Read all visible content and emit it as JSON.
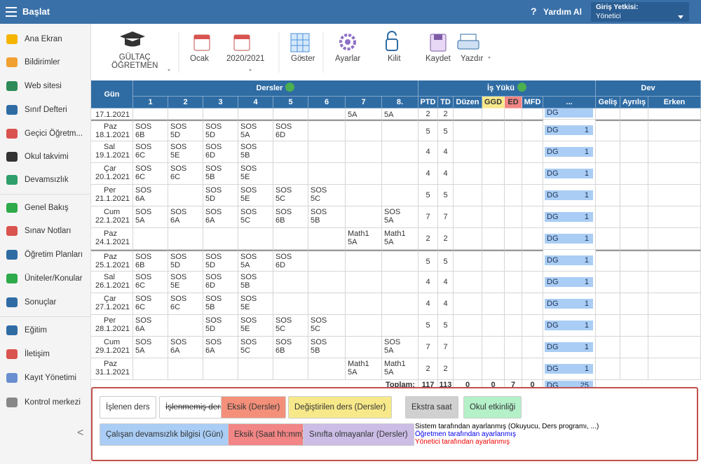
{
  "header": {
    "title": "Başlat",
    "help": "Yardım Al",
    "role_label": "Giriş Yetkisi:",
    "role": "Yönetici"
  },
  "sidebar": {
    "items": [
      "Ana Ekran",
      "Bildirimler",
      "Web sitesi",
      "Sınıf Defteri",
      "Geçici Öğretm...",
      "Okul takvimi",
      "Devamsızlık",
      "Genel Bakış",
      "Sınav Notları",
      "Öğretim Planları",
      "Üniteler/Konular",
      "Sonuçlar",
      "Eğitim",
      "İletişim",
      "Kayıt Yönetimi",
      "Kontrol merkezi"
    ]
  },
  "toolbar": {
    "teacher": [
      "GÜLTAÇ",
      "ÖĞRETMEN"
    ],
    "month": "Ocak",
    "year": "2020/2021",
    "show": "Göster",
    "settings": "Ayarlar",
    "lock": "Kilit",
    "save": "Kaydet",
    "print": "Yazdır"
  },
  "table": {
    "headers": {
      "day": "Gün",
      "lessons": "Dersler",
      "workload": "İş Yükü",
      "attendance": "Dev",
      "lesson_cols": [
        "1",
        "2",
        "3",
        "4",
        "5",
        "6",
        "7",
        "8."
      ],
      "workload_cols": [
        "PTD",
        "TD",
        "Düzen",
        "GGD",
        "ED",
        "MFD",
        "..."
      ],
      "attendance_cols": [
        "Geliş",
        "Ayrılış",
        "Erken"
      ]
    },
    "rows": [
      {
        "day": null,
        "date": "17.1.2021",
        "lessons": [
          null,
          null,
          null,
          null,
          null,
          null,
          {
            "c": "5A"
          },
          {
            "c": "5A"
          }
        ],
        "ptd": 2,
        "td": 2,
        "dg": "DG",
        "dg_value": null
      },
      {
        "day": "Paz",
        "date": "18.1.2021",
        "lessons": [
          {
            "s": "SOS",
            "c": "6B"
          },
          {
            "s": "SOS",
            "c": "5D"
          },
          {
            "s": "SOS",
            "c": "5D"
          },
          {
            "s": "SOS",
            "c": "5A"
          },
          {
            "s": "SOS",
            "c": "6D"
          },
          null,
          null,
          null
        ],
        "ptd": 5,
        "td": 5,
        "dg": "DG",
        "dg_value": 1
      },
      {
        "day": "Sal",
        "date": "19.1.2021",
        "lessons": [
          {
            "s": "SOS",
            "c": "6C"
          },
          {
            "s": "SOS",
            "c": "5E"
          },
          {
            "s": "SOS",
            "c": "6D"
          },
          {
            "s": "SOS",
            "c": "5B"
          },
          null,
          null,
          null,
          null
        ],
        "ptd": 4,
        "td": 4,
        "dg": "DG",
        "dg_value": 1
      },
      {
        "day": "Çar",
        "date": "20.1.2021",
        "lessons": [
          {
            "s": "SOS",
            "c": "6C"
          },
          {
            "s": "SOS",
            "c": "6C"
          },
          {
            "s": "SOS",
            "c": "5B"
          },
          {
            "s": "SOS",
            "c": "5E"
          },
          null,
          null,
          null,
          null
        ],
        "ptd": 4,
        "td": 4,
        "dg": "DG",
        "dg_value": 1
      },
      {
        "day": "Per",
        "date": "21.1.2021",
        "lessons": [
          {
            "s": "SOS",
            "c": "6A"
          },
          null,
          {
            "s": "SOS",
            "c": "5D"
          },
          {
            "s": "SOS",
            "c": "5E"
          },
          {
            "s": "SOS",
            "c": "5C"
          },
          {
            "s": "SOS",
            "c": "5C"
          },
          null,
          null
        ],
        "ptd": 5,
        "td": 5,
        "dg": "DG",
        "dg_value": 1
      },
      {
        "day": "Cum",
        "date": "22.1.2021",
        "lessons": [
          {
            "s": "SOS",
            "c": "5A"
          },
          {
            "s": "SOS",
            "c": "6A"
          },
          {
            "s": "SOS",
            "c": "6A"
          },
          {
            "s": "SOS",
            "c": "5C"
          },
          {
            "s": "SOS",
            "c": "6B"
          },
          {
            "s": "SOS",
            "c": "5B"
          },
          null,
          {
            "s": "SOS",
            "c": "5A"
          }
        ],
        "ptd": 7,
        "td": 7,
        "dg": "DG",
        "dg_value": 1
      },
      {
        "day": "Paz",
        "date": "24.1.2021",
        "lessons": [
          null,
          null,
          null,
          null,
          null,
          null,
          {
            "s": "Math1",
            "c": "5A"
          },
          {
            "s": "Math1",
            "c": "5A"
          }
        ],
        "ptd": 2,
        "td": 2,
        "dg": "DG",
        "dg_value": 1
      },
      {
        "day": "Paz",
        "date": "25.1.2021",
        "lessons": [
          {
            "s": "SOS",
            "c": "6B"
          },
          {
            "s": "SOS",
            "c": "5D"
          },
          {
            "s": "SOS",
            "c": "5D"
          },
          {
            "s": "SOS",
            "c": "5A"
          },
          {
            "s": "SOS",
            "c": "6D"
          },
          null,
          null,
          null
        ],
        "ptd": 5,
        "td": 5,
        "dg": "DG",
        "dg_value": 1
      },
      {
        "day": "Sal",
        "date": "26.1.2021",
        "lessons": [
          {
            "s": "SOS",
            "c": "6C"
          },
          {
            "s": "SOS",
            "c": "5E"
          },
          {
            "s": "SOS",
            "c": "6D"
          },
          {
            "s": "SOS",
            "c": "5B"
          },
          null,
          null,
          null,
          null
        ],
        "ptd": 4,
        "td": 4,
        "dg": "DG",
        "dg_value": 1
      },
      {
        "day": "Çar",
        "date": "27.1.2021",
        "lessons": [
          {
            "s": "SOS",
            "c": "6C"
          },
          {
            "s": "SOS",
            "c": "6C"
          },
          {
            "s": "SOS",
            "c": "5B"
          },
          {
            "s": "SOS",
            "c": "5E"
          },
          null,
          null,
          null,
          null
        ],
        "ptd": 4,
        "td": 4,
        "dg": "DG",
        "dg_value": 1
      },
      {
        "day": "Per",
        "date": "28.1.2021",
        "lessons": [
          {
            "s": "SOS",
            "c": "6A"
          },
          null,
          {
            "s": "SOS",
            "c": "5D"
          },
          {
            "s": "SOS",
            "c": "5E"
          },
          {
            "s": "SOS",
            "c": "5C"
          },
          {
            "s": "SOS",
            "c": "5C"
          },
          null,
          null
        ],
        "ptd": 5,
        "td": 5,
        "dg": "DG",
        "dg_value": 1
      },
      {
        "day": "Cum",
        "date": "29.1.2021",
        "lessons": [
          {
            "s": "SOS",
            "c": "5A"
          },
          {
            "s": "SOS",
            "c": "6A"
          },
          {
            "s": "SOS",
            "c": "6A"
          },
          {
            "s": "SOS",
            "c": "5C"
          },
          {
            "s": "SOS",
            "c": "6B"
          },
          {
            "s": "SOS",
            "c": "5B"
          },
          null,
          {
            "s": "SOS",
            "c": "5A"
          }
        ],
        "ptd": 7,
        "td": 7,
        "dg": "DG",
        "dg_value": 1
      },
      {
        "day": "Paz",
        "date": "31.1.2021",
        "lessons": [
          null,
          null,
          null,
          null,
          null,
          null,
          {
            "s": "Math1",
            "c": "5A"
          },
          {
            "s": "Math1",
            "c": "5A"
          }
        ],
        "ptd": 2,
        "td": 2,
        "dg": "DG",
        "dg_value": 1
      }
    ],
    "total": {
      "label": "Toplam:",
      "ptd": 117,
      "td": 113,
      "duzen": 0,
      "ggd": 0,
      "ed": 7,
      "mfd": 0,
      "dg": "DG",
      "dg_value": 25
    }
  },
  "legend": {
    "items": [
      {
        "label": "İşlenen ders",
        "color": "#ffffff"
      },
      {
        "label": "İşlenmemiş ders",
        "color": "#ffffff",
        "strike": true
      },
      {
        "label": "Eksik (Dersler)",
        "color": "#f4907a"
      },
      {
        "label": "Değiştirilen ders (Dersler)",
        "color": "#f7e98a"
      },
      {
        "label": "Ekstra saat",
        "color": "#d0d0d0"
      },
      {
        "label": "Okul etkinliği",
        "color": "#b4f0c8"
      },
      {
        "label": "Çalışan devamsızlık bilgisi (Gün)",
        "color": "#a9cdf5"
      },
      {
        "label": "Eksik (Saat hh:mm)",
        "color": "#f28585"
      },
      {
        "label": "Sınıfta olmayanlar (Dersler)",
        "color": "#cbbde6"
      }
    ],
    "notes": [
      {
        "text": "Sistem tarafından ayarlanmış (Okuyucu, Ders programı, ...)",
        "color": "#000000"
      },
      {
        "text": "Öğretmen tarafından ayarlanmış",
        "color": "#0000ee"
      },
      {
        "text": "Yönetici tarafından ayarlanmış",
        "color": "#ee0000"
      }
    ]
  }
}
